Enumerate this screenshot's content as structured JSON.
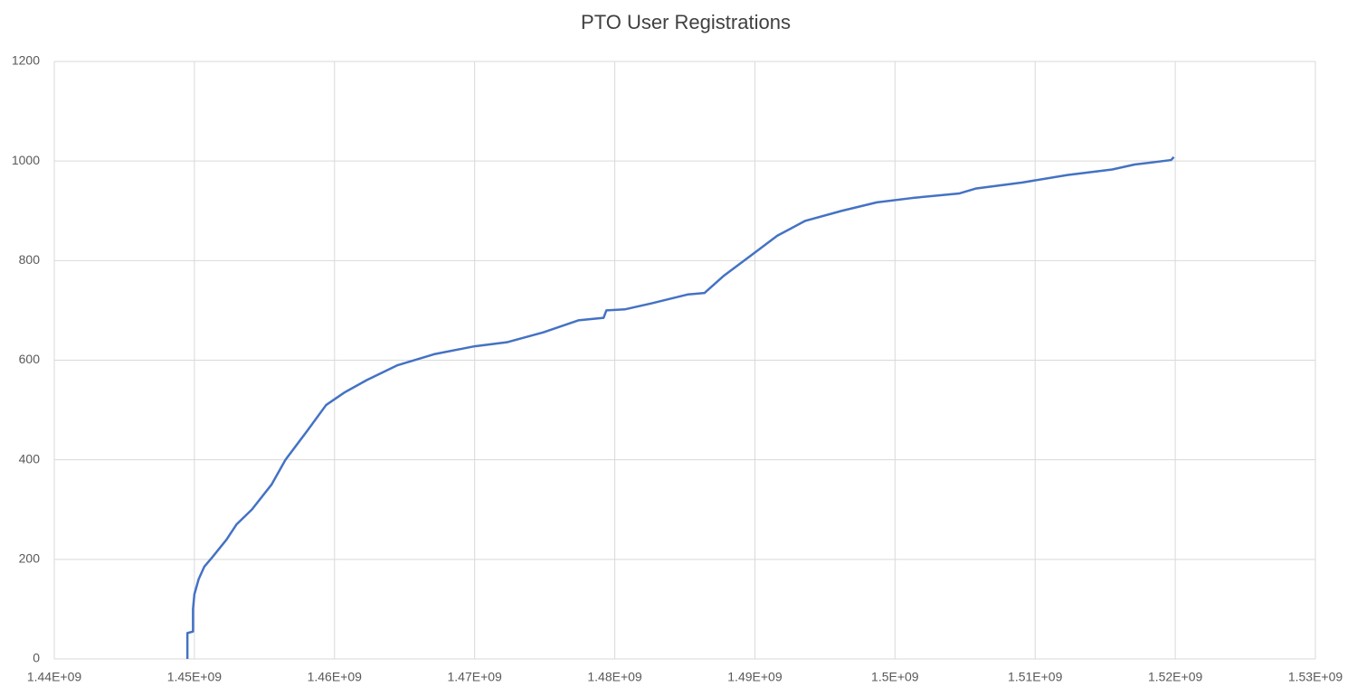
{
  "chart_data": {
    "type": "line",
    "title": "PTO User Registrations",
    "x": [
      1449500000,
      1449500000,
      1449900000,
      1449900000,
      1450000000,
      1450300000,
      1450700000,
      1451300000,
      1452300000,
      1453000000,
      1454100000,
      1455500000,
      1456500000,
      1458100000,
      1459400000,
      1460700000,
      1462300000,
      1464500000,
      1467100000,
      1470000000,
      1472300000,
      1474900000,
      1477400000,
      1479200000,
      1479400000,
      1480700000,
      1482600000,
      1485200000,
      1486400000,
      1487800000,
      1489700000,
      1491600000,
      1493600000,
      1496200000,
      1498700000,
      1501300000,
      1504600000,
      1505800000,
      1509100000,
      1512300000,
      1515500000,
      1517100000,
      1519700000,
      1519900000
    ],
    "values": [
      0,
      52,
      55,
      100,
      130,
      160,
      185,
      205,
      240,
      270,
      300,
      350,
      400,
      460,
      510,
      535,
      560,
      590,
      612,
      628,
      636,
      656,
      680,
      685,
      700,
      702,
      714,
      732,
      735,
      770,
      810,
      850,
      880,
      900,
      917,
      926,
      935,
      945,
      957,
      972,
      983,
      993,
      1002,
      1008
    ],
    "color": "#4472c4",
    "xlim": [
      1440000000,
      1530000000
    ],
    "xticks": [
      {
        "value": 1440000000,
        "label": "1.44E+09"
      },
      {
        "value": 1450000000,
        "label": "1.45E+09"
      },
      {
        "value": 1460000000,
        "label": "1.46E+09"
      },
      {
        "value": 1470000000,
        "label": "1.47E+09"
      },
      {
        "value": 1480000000,
        "label": "1.48E+09"
      },
      {
        "value": 1490000000,
        "label": "1.49E+09"
      },
      {
        "value": 1500000000,
        "label": "1.5E+09"
      },
      {
        "value": 1510000000,
        "label": "1.51E+09"
      },
      {
        "value": 1520000000,
        "label": "1.52E+09"
      },
      {
        "value": 1530000000,
        "label": "1.53E+09"
      }
    ],
    "ylim": [
      0,
      1200
    ],
    "yticks": [
      0,
      200,
      400,
      600,
      800,
      1000,
      1200
    ],
    "grid": true
  }
}
